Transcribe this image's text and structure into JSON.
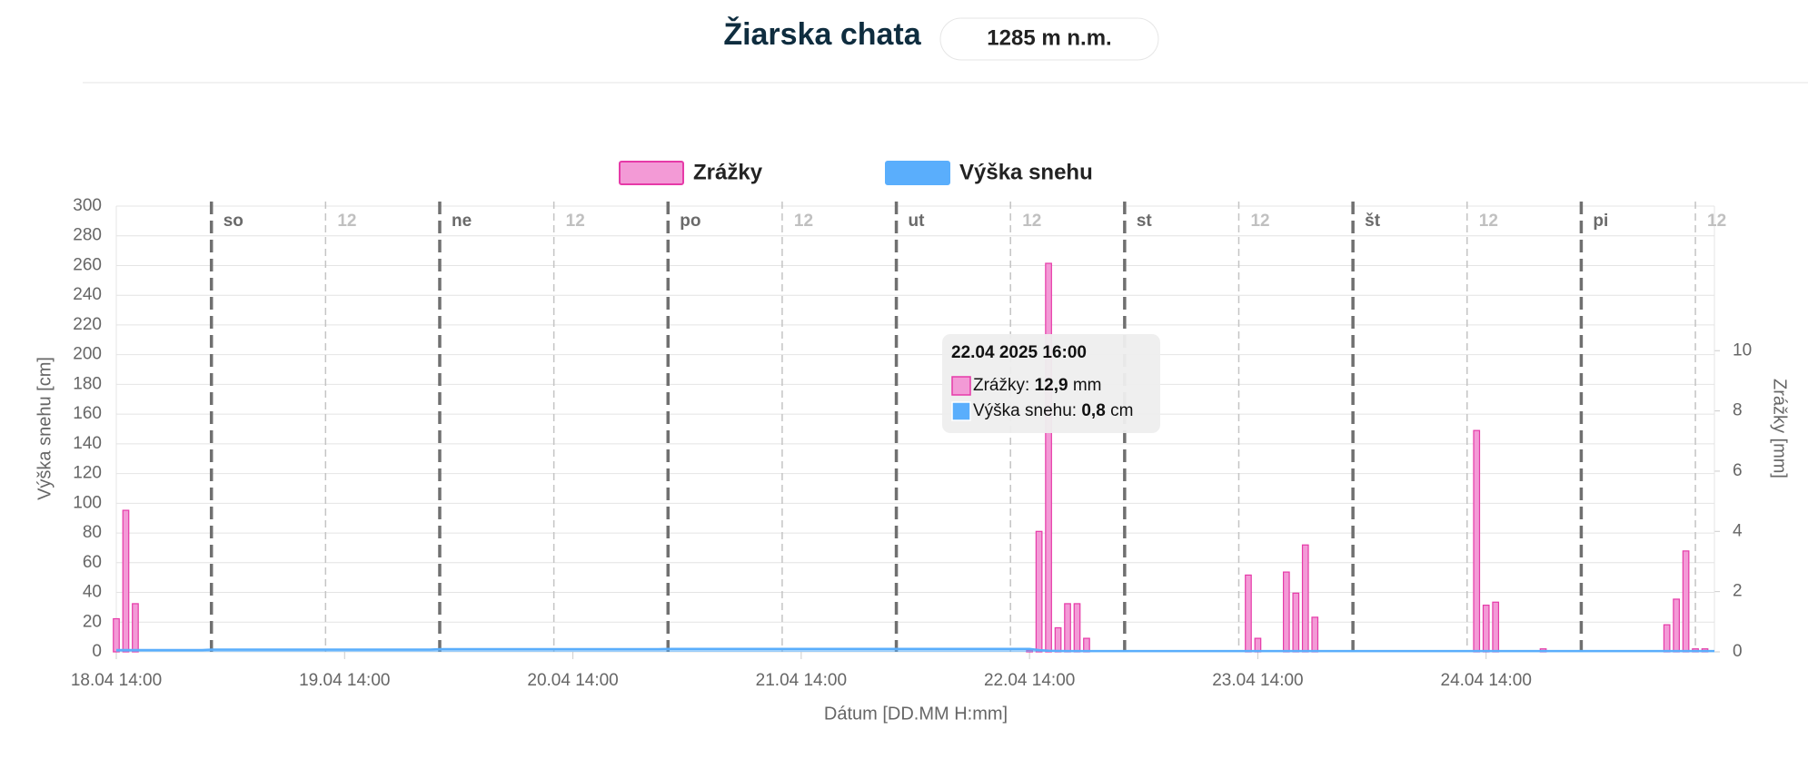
{
  "header": {
    "title": "Žiarska chata",
    "altitude": "1285 m n.m."
  },
  "chart_data": {
    "type": "bar-line",
    "y_label": "Výška snehu [cm]",
    "y2_label": "Zrážky [mm]",
    "x_label": "Dátum [DD.MM H:mm]",
    "x": [
      "18.04 14:00",
      "18.04 15:00",
      "18.04 16:00",
      "18.04 17:00",
      "18.04 18:00",
      "18.04 19:00",
      "18.04 20:00",
      "18.04 21:00",
      "18.04 22:00",
      "18.04 23:00",
      "19.04 0:00",
      "19.04 1:00",
      "19.04 2:00",
      "19.04 3:00",
      "19.04 4:00",
      "19.04 5:00",
      "19.04 6:00",
      "19.04 7:00",
      "19.04 8:00",
      "19.04 9:00",
      "19.04 10:00",
      "19.04 11:00",
      "19.04 12:00",
      "19.04 13:00",
      "19.04 14:00",
      "19.04 15:00",
      "19.04 16:00",
      "19.04 17:00",
      "19.04 18:00",
      "19.04 19:00",
      "19.04 20:00",
      "19.04 21:00",
      "19.04 22:00",
      "19.04 23:00",
      "20.04 0:00",
      "20.04 1:00",
      "20.04 2:00",
      "20.04 3:00",
      "20.04 4:00",
      "20.04 5:00",
      "20.04 6:00",
      "20.04 7:00",
      "20.04 8:00",
      "20.04 9:00",
      "20.04 10:00",
      "20.04 11:00",
      "20.04 12:00",
      "20.04 13:00",
      "20.04 14:00",
      "20.04 15:00",
      "20.04 16:00",
      "20.04 17:00",
      "20.04 18:00",
      "20.04 19:00",
      "20.04 20:00",
      "20.04 21:00",
      "20.04 22:00",
      "20.04 23:00",
      "21.04 0:00",
      "21.04 1:00",
      "21.04 2:00",
      "21.04 3:00",
      "21.04 4:00",
      "21.04 5:00",
      "21.04 6:00",
      "21.04 7:00",
      "21.04 8:00",
      "21.04 9:00",
      "21.04 10:00",
      "21.04 11:00",
      "21.04 12:00",
      "21.04 13:00",
      "21.04 14:00",
      "21.04 15:00",
      "21.04 16:00",
      "21.04 17:00",
      "21.04 18:00",
      "21.04 19:00",
      "21.04 20:00",
      "21.04 21:00",
      "21.04 22:00",
      "21.04 23:00",
      "22.04 0:00",
      "22.04 1:00",
      "22.04 2:00",
      "22.04 3:00",
      "22.04 4:00",
      "22.04 5:00",
      "22.04 6:00",
      "22.04 7:00",
      "22.04 8:00",
      "22.04 9:00",
      "22.04 10:00",
      "22.04 11:00",
      "22.04 12:00",
      "22.04 13:00",
      "22.04 14:00",
      "22.04 15:00",
      "22.04 16:00",
      "22.04 17:00",
      "22.04 18:00",
      "22.04 19:00",
      "22.04 20:00",
      "22.04 21:00",
      "22.04 22:00",
      "22.04 23:00",
      "23.04 0:00",
      "23.04 1:00",
      "23.04 2:00",
      "23.04 3:00",
      "23.04 4:00",
      "23.04 5:00",
      "23.04 6:00",
      "23.04 7:00",
      "23.04 8:00",
      "23.04 9:00",
      "23.04 10:00",
      "23.04 11:00",
      "23.04 12:00",
      "23.04 13:00",
      "23.04 14:00",
      "23.04 15:00",
      "23.04 16:00",
      "23.04 17:00",
      "23.04 18:00",
      "23.04 19:00",
      "23.04 20:00",
      "23.04 21:00",
      "23.04 22:00",
      "23.04 23:00",
      "24.04 0:00",
      "24.04 1:00",
      "24.04 2:00",
      "24.04 3:00",
      "24.04 4:00",
      "24.04 5:00",
      "24.04 6:00",
      "24.04 7:00",
      "24.04 8:00",
      "24.04 9:00",
      "24.04 10:00",
      "24.04 11:00",
      "24.04 12:00",
      "24.04 13:00",
      "24.04 14:00",
      "24.04 15:00",
      "24.04 16:00",
      "24.04 17:00",
      "24.04 18:00",
      "24.04 19:00",
      "24.04 20:00",
      "24.04 21:00",
      "24.04 22:00",
      "24.04 23:00",
      "25.04 0:00",
      "25.04 1:00",
      "25.04 2:00",
      "25.04 3:00",
      "25.04 4:00",
      "25.04 5:00",
      "25.04 6:00",
      "25.04 7:00",
      "25.04 8:00",
      "25.04 9:00",
      "25.04 10:00",
      "25.04 11:00",
      "25.04 12:00",
      "25.04 13:00",
      "25.04 14:00"
    ],
    "xticks": [
      "18.04 14:00",
      "19.04 14:00",
      "20.04 14:00",
      "21.04 14:00",
      "22.04 14:00",
      "23.04 14:00",
      "24.04 14:00"
    ],
    "day_markers": [
      {
        "x": "19.04 0:00",
        "label": "so"
      },
      {
        "x": "20.04 0:00",
        "label": "ne"
      },
      {
        "x": "21.04 0:00",
        "label": "po"
      },
      {
        "x": "22.04 0:00",
        "label": "ut"
      },
      {
        "x": "23.04 0:00",
        "label": "st"
      },
      {
        "x": "24.04 0:00",
        "label": "št"
      },
      {
        "x": "25.04 0:00",
        "label": "pi"
      }
    ],
    "noon_markers": [
      {
        "x": "19.04 12:00",
        "label": "12"
      },
      {
        "x": "20.04 12:00",
        "label": "12"
      },
      {
        "x": "21.04 12:00",
        "label": "12"
      },
      {
        "x": "22.04 12:00",
        "label": "12"
      },
      {
        "x": "23.04 12:00",
        "label": "12"
      },
      {
        "x": "24.04 12:00",
        "label": "12"
      },
      {
        "x": "25.04 12:00",
        "label": "12"
      }
    ],
    "series": [
      {
        "name": "Zrážky",
        "type": "bar",
        "axis": "y2",
        "color": "#f39ad6",
        "values": [
          1.1,
          4.7,
          1.6,
          0,
          0,
          0,
          0,
          0,
          0,
          0,
          0,
          0,
          0,
          0,
          0,
          0,
          0,
          0,
          0,
          0,
          0,
          0,
          0,
          0,
          0,
          0,
          0,
          0,
          0,
          0,
          0,
          0,
          0,
          0,
          0,
          0,
          0,
          0,
          0,
          0,
          0,
          0,
          0,
          0,
          0,
          0,
          0,
          0,
          0,
          0,
          0,
          0,
          0,
          0,
          0,
          0,
          0,
          0,
          0,
          0,
          0,
          0,
          0,
          0,
          0,
          0,
          0,
          0,
          0,
          0,
          0,
          0,
          0,
          0,
          0,
          0,
          0,
          0,
          0,
          0,
          0,
          0,
          0,
          0,
          0,
          0,
          0,
          0,
          0,
          0,
          0,
          0,
          0,
          0,
          0,
          0,
          0.05,
          4.0,
          12.9,
          0.8,
          1.6,
          1.6,
          0.45,
          0,
          0,
          0,
          0,
          0,
          0,
          0,
          0,
          0,
          0,
          0,
          0,
          0,
          0,
          0,
          0,
          2.55,
          0.45,
          0,
          0,
          2.65,
          1.95,
          3.55,
          1.15,
          0,
          0,
          0,
          0,
          0,
          0,
          0,
          0,
          0,
          0,
          0,
          0,
          0,
          0,
          0,
          0,
          7.35,
          1.55,
          1.65,
          0,
          0,
          0,
          0,
          0.1,
          0,
          0,
          0,
          0,
          0,
          0,
          0,
          0,
          0,
          0,
          0,
          0,
          0.9,
          1.75,
          3.35,
          0.1,
          0.1,
          0
        ]
      },
      {
        "name": "Výška snehu",
        "type": "area",
        "color": "#5aaefc",
        "values": [
          1.2,
          1.2,
          1.2,
          1.2,
          1.2,
          1.2,
          1.2,
          1.2,
          1.2,
          1.2,
          1.5,
          1.5,
          1.5,
          1.5,
          1.5,
          1.5,
          1.5,
          1.5,
          1.5,
          1.5,
          1.5,
          1.5,
          1.5,
          1.5,
          1.5,
          1.5,
          1.5,
          1.5,
          1.5,
          1.5,
          1.5,
          1.5,
          1.5,
          1.5,
          1.8,
          1.8,
          1.8,
          1.8,
          1.8,
          1.8,
          1.8,
          1.8,
          1.8,
          1.8,
          1.8,
          1.8,
          1.8,
          1.8,
          1.8,
          1.8,
          1.8,
          1.8,
          1.8,
          1.8,
          1.8,
          1.8,
          1.8,
          1.8,
          2,
          2,
          2,
          2,
          2,
          2,
          2,
          2,
          2,
          2,
          2,
          2,
          2,
          2,
          2,
          2,
          2,
          2,
          2,
          2,
          2,
          2,
          2,
          2,
          2,
          2,
          2,
          2,
          2,
          2,
          2,
          2,
          2,
          2,
          2,
          2,
          2,
          2,
          2,
          1.2,
          0.8,
          0.6,
          0.5,
          0.5,
          0.5,
          0.5,
          0.5,
          0.5,
          0.5,
          0.5,
          0.5,
          0.5,
          0.5,
          0.5,
          0.5,
          0.5,
          0.5,
          0.5,
          0.5,
          0.5,
          0.5,
          0.5,
          0.5,
          0.5,
          0.5,
          0.5,
          0.5,
          0.5,
          0.5,
          0.5,
          0.5,
          0.5,
          0.5,
          0.5,
          0.5,
          0.5,
          0.5,
          0.5,
          0.5,
          0.5,
          0.5,
          0.5,
          0.5,
          0.5,
          0.5,
          0.5,
          0.5,
          0.5,
          0.5,
          0.5,
          0.5,
          0.5,
          0.5,
          0.5,
          0.5,
          0.5,
          0.5,
          0.5,
          0.5,
          0.5,
          0.5,
          0.5,
          0.5,
          0.5,
          0.5,
          0.5,
          0.5,
          0.5,
          0.5,
          0.5,
          0.5
        ]
      }
    ],
    "ylim": [
      0,
      300
    ],
    "yticks": [
      0,
      20,
      40,
      60,
      80,
      100,
      120,
      140,
      160,
      180,
      200,
      220,
      240,
      260,
      280,
      300
    ],
    "y2lim": [
      0,
      14.8
    ],
    "y2ticks": [
      0,
      2,
      4,
      6,
      8,
      10
    ],
    "grid": true,
    "tooltip": {
      "title": "22.04 2025 16:00",
      "lines": [
        {
          "label": "Zrážky:",
          "value": "12,9",
          "unit": "mm"
        },
        {
          "label": "Výška snehu:",
          "value": "0,8",
          "unit": "cm"
        }
      ]
    }
  }
}
